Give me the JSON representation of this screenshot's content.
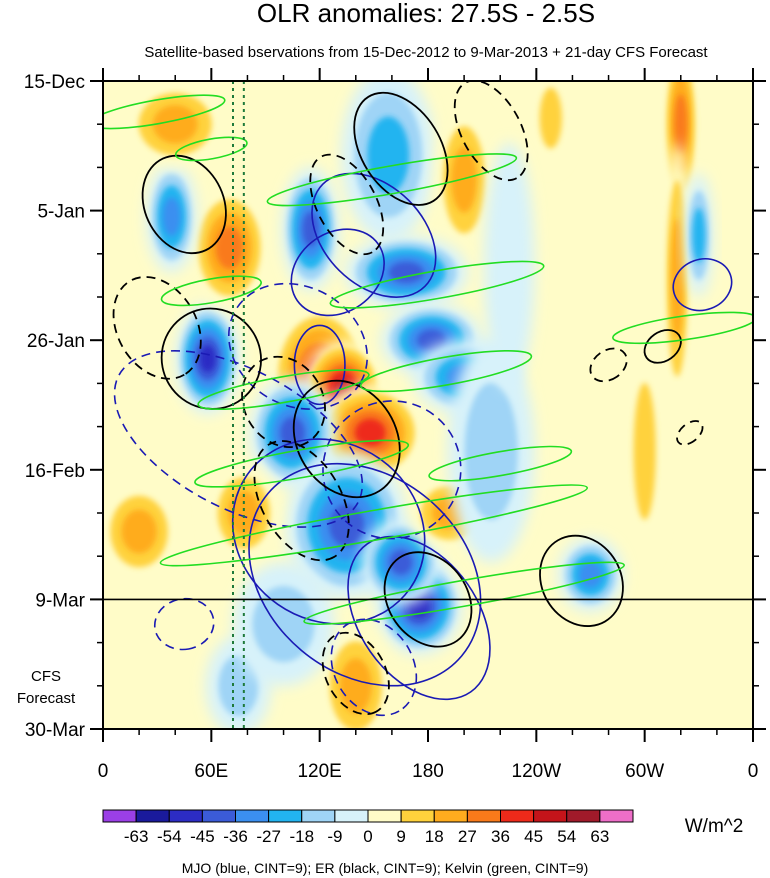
{
  "chart_data": {
    "type": "heatmap",
    "title": "OLR anomalies: 27.5S - 2.5S",
    "subtitle": "Satellite-based bservations from 15-Dec-2012 to 9-Mar-2013 + 21-day CFS Forecast",
    "x_ticks": [
      {
        "lon": 0,
        "label": "0"
      },
      {
        "lon": 60,
        "label": "60E"
      },
      {
        "lon": 120,
        "label": "120E"
      },
      {
        "lon": 180,
        "label": "180"
      },
      {
        "lon": 240,
        "label": "120W"
      },
      {
        "lon": 300,
        "label": "60W"
      },
      {
        "lon": 360,
        "label": "0"
      }
    ],
    "xlim": [
      0,
      360
    ],
    "y_ticks": [
      {
        "day": 0,
        "label": "15-Dec"
      },
      {
        "day": 21,
        "label": "5-Jan"
      },
      {
        "day": 42,
        "label": "26-Jan"
      },
      {
        "day": 63,
        "label": "16-Feb"
      },
      {
        "day": 84,
        "label": "9-Mar"
      },
      {
        "day": 105,
        "label": "30-Mar"
      }
    ],
    "ylim_days": [
      0,
      105
    ],
    "observation_end_day": 84,
    "forecast_label_line1": "CFS",
    "forecast_label_line2": "Forecast",
    "colorbar": {
      "units": "W/m^2",
      "levels": [
        -63,
        -54,
        -45,
        -36,
        -27,
        -18,
        -9,
        0,
        9,
        18,
        27,
        36,
        45,
        54,
        63
      ],
      "level_labels": [
        "-63",
        "-54",
        "-45",
        "-36",
        "-27",
        "-18",
        "-9",
        "0",
        "9",
        "18",
        "27",
        "36",
        "45",
        "54",
        "63"
      ],
      "colors": [
        "#9b3fe6",
        "#1a1a9c",
        "#2c2cc4",
        "#3b5bd8",
        "#3b8ff0",
        "#22b4f0",
        "#9fd4f6",
        "#d7f2fa",
        "#fffcc8",
        "#ffd23c",
        "#ffac1e",
        "#f97a1a",
        "#ee2a1a",
        "#c4141a",
        "#a01a2a",
        "#ee6ec8"
      ]
    },
    "filtered_waves": [
      {
        "name": "MJO",
        "color_name": "blue",
        "cint": 9,
        "color": "#1a1ab4"
      },
      {
        "name": "ER",
        "color_name": "black",
        "cint": 9,
        "color": "#000000"
      },
      {
        "name": "Kelvin",
        "color_name": "green",
        "cint": 9,
        "color": "#22dd22"
      }
    ],
    "reference_lines_lon": [
      72,
      78
    ],
    "bottom_caption": "MJO (blue, CINT=9); ER (black, CINT=9); Kelvin (green, CINT=9)",
    "anomaly_features": [
      {
        "lon": 120,
        "day": 48,
        "dlon": 28,
        "dday": 12,
        "value": 45
      },
      {
        "lon": 133,
        "day": 50,
        "dlon": 22,
        "dday": 8,
        "value": 54
      },
      {
        "lon": 148,
        "day": 57,
        "dlon": 30,
        "dday": 8,
        "value": 45
      },
      {
        "lon": 105,
        "day": 57,
        "dlon": 24,
        "dday": 9,
        "value": -45
      },
      {
        "lon": 58,
        "day": 45,
        "dlon": 18,
        "dday": 9,
        "value": -54
      },
      {
        "lon": 70,
        "day": 27,
        "dlon": 22,
        "dday": 10,
        "value": 36
      },
      {
        "lon": 38,
        "day": 22,
        "dlon": 14,
        "dday": 9,
        "value": -36
      },
      {
        "lon": 40,
        "day": 7,
        "dlon": 28,
        "dday": 7,
        "value": 27
      },
      {
        "lon": 115,
        "day": 24,
        "dlon": 16,
        "dday": 10,
        "value": -45
      },
      {
        "lon": 158,
        "day": 12,
        "dlon": 26,
        "dday": 14,
        "value": -27
      },
      {
        "lon": 200,
        "day": 16,
        "dlon": 16,
        "dday": 12,
        "value": 27
      },
      {
        "lon": 168,
        "day": 31,
        "dlon": 34,
        "dday": 6,
        "value": -45
      },
      {
        "lon": 182,
        "day": 42,
        "dlon": 28,
        "dday": 6,
        "value": -45
      },
      {
        "lon": 200,
        "day": 48,
        "dlon": 28,
        "dday": 6,
        "value": -36
      },
      {
        "lon": 135,
        "day": 72,
        "dlon": 34,
        "dday": 12,
        "value": -45
      },
      {
        "lon": 175,
        "day": 85,
        "dlon": 24,
        "dday": 8,
        "value": -54
      },
      {
        "lon": 165,
        "day": 78,
        "dlon": 22,
        "dday": 7,
        "value": -45
      },
      {
        "lon": 192,
        "day": 70,
        "dlon": 22,
        "dday": 6,
        "value": 27
      },
      {
        "lon": 20,
        "day": 73,
        "dlon": 22,
        "dday": 8,
        "value": 27
      },
      {
        "lon": 78,
        "day": 70,
        "dlon": 20,
        "dday": 8,
        "value": 27
      },
      {
        "lon": 140,
        "day": 98,
        "dlon": 20,
        "dday": 10,
        "value": 27
      },
      {
        "lon": 75,
        "day": 98,
        "dlon": 18,
        "dday": 8,
        "value": -18
      },
      {
        "lon": 270,
        "day": 80,
        "dlon": 18,
        "dday": 6,
        "value": -36
      },
      {
        "lon": 320,
        "day": 7,
        "dlon": 10,
        "dday": 14,
        "value": 36
      },
      {
        "lon": 318,
        "day": 32,
        "dlon": 8,
        "dday": 22,
        "value": 27
      },
      {
        "lon": 330,
        "day": 25,
        "dlon": 8,
        "dday": 10,
        "value": -27
      },
      {
        "lon": 300,
        "day": 60,
        "dlon": 10,
        "dday": 18,
        "value": 18
      },
      {
        "lon": 215,
        "day": 60,
        "dlon": 24,
        "dday": 18,
        "value": -18
      },
      {
        "lon": 225,
        "day": 30,
        "dlon": 14,
        "dday": 20,
        "value": -9
      },
      {
        "lon": 100,
        "day": 88,
        "dlon": 28,
        "dday": 10,
        "value": -18
      },
      {
        "lon": 248,
        "day": 6,
        "dlon": 10,
        "dday": 8,
        "value": 18
      }
    ],
    "mjo_contours": [
      {
        "lon": 120,
        "day": 46,
        "rx": 14,
        "ry": 4,
        "angle": 0
      },
      {
        "lon": 75,
        "day": 58,
        "rx": 75,
        "ry": 7,
        "angle": 28,
        "dashed": true
      },
      {
        "lon": 108,
        "day": 43,
        "rx": 40,
        "ry": 6,
        "angle": 30,
        "dashed": true
      },
      {
        "lon": 125,
        "day": 73,
        "rx": 55,
        "ry": 9,
        "angle": 35
      },
      {
        "lon": 145,
        "day": 80,
        "rx": 70,
        "ry": 10,
        "angle": 40
      },
      {
        "lon": 150,
        "day": 25,
        "rx": 40,
        "ry": 5,
        "angle": 45
      },
      {
        "lon": 130,
        "day": 31,
        "rx": 22,
        "ry": 5,
        "angle": 55
      },
      {
        "lon": 175,
        "day": 87,
        "rx": 50,
        "ry": 6,
        "angle": 55
      },
      {
        "lon": 332,
        "day": 33,
        "rx": 14,
        "ry": 3,
        "angle": 70
      },
      {
        "lon": 160,
        "day": 63,
        "rx": 38,
        "ry": 7,
        "angle": 50,
        "dashed": true
      },
      {
        "lon": 45,
        "day": 88,
        "rx": 14,
        "ry": 3,
        "angle": 80,
        "dashed": true
      },
      {
        "lon": 150,
        "day": 95,
        "rx": 28,
        "ry": 4,
        "angle": 60,
        "dashed": true
      }
    ],
    "er_contours": [
      {
        "lon": 165,
        "day": 11,
        "rx": 34,
        "ry": 4,
        "angle": 58
      },
      {
        "lon": 215,
        "day": 8,
        "rx": 30,
        "ry": 3,
        "angle": 62,
        "dashed": true
      },
      {
        "lon": 135,
        "day": 20,
        "rx": 30,
        "ry": 3,
        "angle": 62,
        "dashed": true
      },
      {
        "lon": 45,
        "day": 20,
        "rx": 28,
        "ry": 4,
        "angle": 65
      },
      {
        "lon": 30,
        "day": 40,
        "rx": 30,
        "ry": 4,
        "angle": 60,
        "dashed": true
      },
      {
        "lon": 60,
        "day": 45,
        "rx": 28,
        "ry": 5,
        "angle": 58
      },
      {
        "lon": 100,
        "day": 52,
        "rx": 26,
        "ry": 4,
        "angle": 60,
        "dashed": true
      },
      {
        "lon": 135,
        "day": 58,
        "rx": 34,
        "ry": 5,
        "angle": 58
      },
      {
        "lon": 110,
        "day": 68,
        "rx": 36,
        "ry": 4,
        "angle": 60,
        "dashed": true
      },
      {
        "lon": 180,
        "day": 84,
        "rx": 28,
        "ry": 4,
        "angle": 55
      },
      {
        "lon": 140,
        "day": 96,
        "rx": 24,
        "ry": 3,
        "angle": 62,
        "dashed": true
      },
      {
        "lon": 265,
        "day": 81,
        "rx": 26,
        "ry": 4,
        "angle": 60
      },
      {
        "lon": 310,
        "day": 43,
        "rx": 8,
        "ry": 2,
        "angle": 55
      },
      {
        "lon": 280,
        "day": 46,
        "rx": 8,
        "ry": 2,
        "angle": 55,
        "dashed": true
      },
      {
        "lon": 325,
        "day": 57,
        "rx": 5,
        "ry": 1.5,
        "angle": 50,
        "dashed": true
      }
    ],
    "kelvin_contours": [
      {
        "lon": 30,
        "day": 5,
        "rx": 38,
        "ry": 1.2,
        "angle": -10
      },
      {
        "lon": 160,
        "day": 16,
        "rx": 70,
        "ry": 1.4,
        "angle": -10
      },
      {
        "lon": 185,
        "day": 33,
        "rx": 60,
        "ry": 1.4,
        "angle": -10
      },
      {
        "lon": 60,
        "day": 34,
        "rx": 28,
        "ry": 1.2,
        "angle": -10
      },
      {
        "lon": 100,
        "day": 50,
        "rx": 48,
        "ry": 1.3,
        "angle": -10
      },
      {
        "lon": 190,
        "day": 47,
        "rx": 48,
        "ry": 1.4,
        "angle": -10
      },
      {
        "lon": 110,
        "day": 62,
        "rx": 60,
        "ry": 1.4,
        "angle": -10
      },
      {
        "lon": 220,
        "day": 62,
        "rx": 40,
        "ry": 1.2,
        "angle": -10
      },
      {
        "lon": 150,
        "day": 72,
        "rx": 120,
        "ry": 1.5,
        "angle": -10
      },
      {
        "lon": 200,
        "day": 83,
        "rx": 90,
        "ry": 1.3,
        "angle": -10
      },
      {
        "lon": 322,
        "day": 40,
        "rx": 40,
        "ry": 1.2,
        "angle": -8
      },
      {
        "lon": 60,
        "day": 11,
        "rx": 20,
        "ry": 1.0,
        "angle": -10
      }
    ]
  }
}
